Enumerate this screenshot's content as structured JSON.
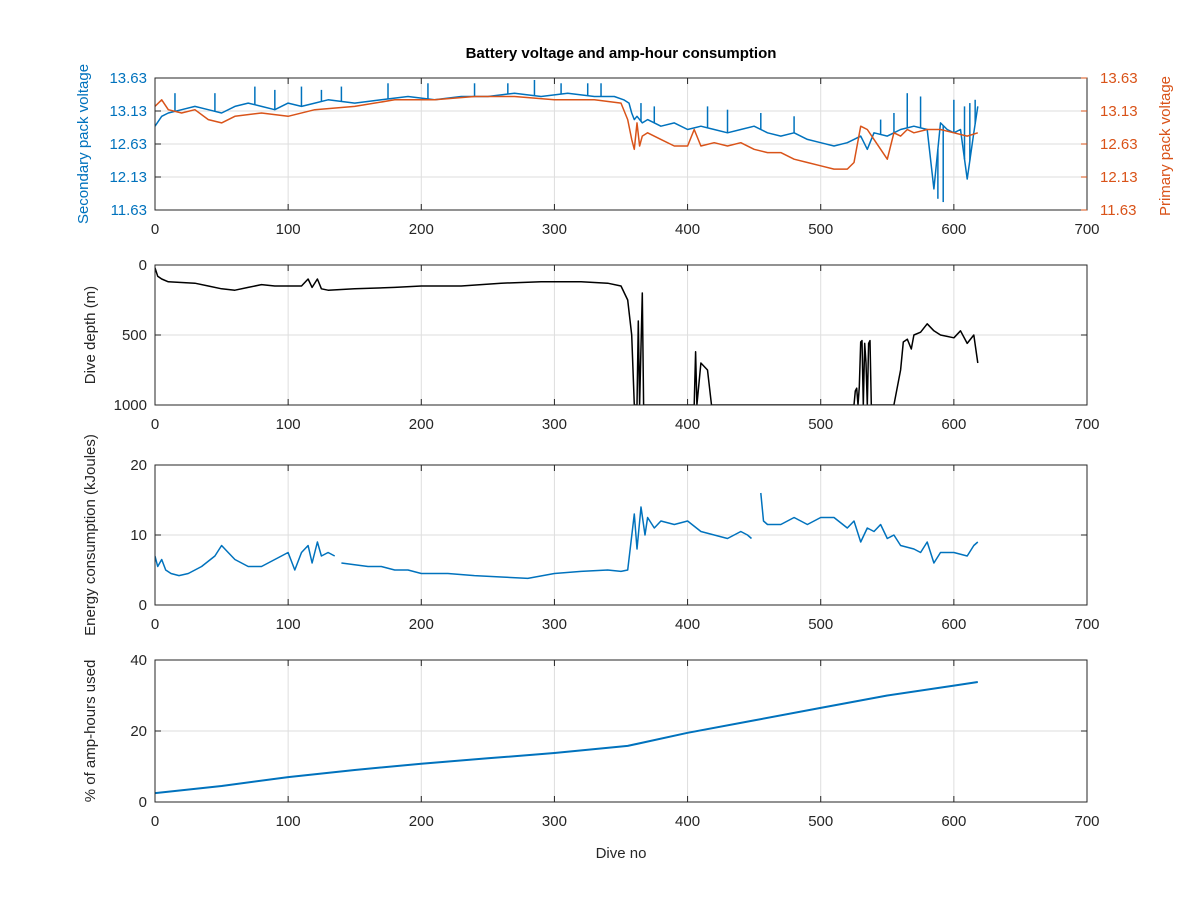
{
  "figure": {
    "title": "Battery voltage and amp-hour consumption",
    "xlabel": "Dive no"
  },
  "colors": {
    "secondary": "#0072bd",
    "primary": "#d95319",
    "depth": "#000000",
    "energy": "#0072bd",
    "amphours": "#0072bd"
  },
  "chart_data": [
    {
      "type": "line",
      "title": "Battery voltage and amp-hour consumption",
      "xlabel": "",
      "ylabel": "Secondary pack voltage",
      "ylabel_right": "Primary pack voltage",
      "xlim": [
        0,
        700
      ],
      "ylim": [
        11.63,
        13.63
      ],
      "xticks": [
        0,
        100,
        200,
        300,
        400,
        500,
        600,
        700
      ],
      "yticks": [
        "11.63",
        "12.13",
        "12.63",
        "13.13",
        "13.63"
      ],
      "yticks_right": [
        "11.63",
        "12.13",
        "12.63",
        "13.13",
        "13.63"
      ],
      "grid": true,
      "series": [
        {
          "axis": "left",
          "x": [
            0,
            5,
            10,
            20,
            30,
            40,
            50,
            60,
            70,
            80,
            90,
            100,
            110,
            120,
            130,
            150,
            170,
            190,
            210,
            230,
            250,
            270,
            290,
            310,
            330,
            345,
            352,
            356,
            358,
            360,
            362,
            366,
            370,
            380,
            390,
            400,
            410,
            420,
            430,
            440,
            450,
            460,
            470,
            480,
            490,
            500,
            510,
            520,
            525,
            530,
            535,
            540,
            550,
            560,
            570,
            580,
            585,
            590,
            595,
            600,
            605,
            610,
            615,
            618
          ],
          "y": [
            12.9,
            13.05,
            13.1,
            13.15,
            13.2,
            13.15,
            13.1,
            13.2,
            13.25,
            13.2,
            13.15,
            13.25,
            13.2,
            13.25,
            13.3,
            13.25,
            13.3,
            13.35,
            13.3,
            13.35,
            13.35,
            13.4,
            13.35,
            13.4,
            13.35,
            13.35,
            13.3,
            13.25,
            13.1,
            13.0,
            13.05,
            12.95,
            13.0,
            12.9,
            12.95,
            12.85,
            12.9,
            12.85,
            12.8,
            12.85,
            12.9,
            12.8,
            12.75,
            12.8,
            12.7,
            12.65,
            12.6,
            12.65,
            12.7,
            12.75,
            12.55,
            12.8,
            12.75,
            12.85,
            12.9,
            12.85,
            11.95,
            12.95,
            12.85,
            12.8,
            12.85,
            12.1,
            12.8,
            13.2
          ],
          "spikes": [
            [
              15,
              13.4
            ],
            [
              45,
              13.4
            ],
            [
              75,
              13.5
            ],
            [
              90,
              13.45
            ],
            [
              110,
              13.5
            ],
            [
              125,
              13.45
            ],
            [
              140,
              13.5
            ],
            [
              175,
              13.55
            ],
            [
              205,
              13.55
            ],
            [
              240,
              13.55
            ],
            [
              265,
              13.55
            ],
            [
              285,
              13.6
            ],
            [
              305,
              13.55
            ],
            [
              325,
              13.55
            ],
            [
              335,
              13.55
            ],
            [
              365,
              13.25
            ],
            [
              375,
              13.2
            ],
            [
              415,
              13.2
            ],
            [
              430,
              13.15
            ],
            [
              455,
              13.1
            ],
            [
              480,
              13.05
            ],
            [
              545,
              13.0
            ],
            [
              555,
              13.1
            ],
            [
              565,
              13.4
            ],
            [
              575,
              13.35
            ],
            [
              588,
              11.8
            ],
            [
              592,
              11.75
            ],
            [
              600,
              13.3
            ],
            [
              608,
              13.2
            ],
            [
              612,
              13.25
            ],
            [
              616,
              13.3
            ]
          ]
        },
        {
          "axis": "right",
          "x": [
            0,
            5,
            10,
            20,
            30,
            40,
            50,
            60,
            80,
            100,
            120,
            150,
            180,
            210,
            240,
            270,
            300,
            330,
            350,
            355,
            358,
            360,
            362,
            364,
            366,
            370,
            380,
            390,
            400,
            405,
            410,
            420,
            430,
            440,
            450,
            460,
            470,
            480,
            490,
            500,
            510,
            520,
            525,
            530,
            535,
            540,
            550,
            555,
            560,
            565,
            570,
            580,
            590,
            600,
            610,
            618
          ],
          "y": [
            13.2,
            13.3,
            13.15,
            13.1,
            13.15,
            13.0,
            12.95,
            13.05,
            13.1,
            13.05,
            13.15,
            13.2,
            13.3,
            13.3,
            13.35,
            13.35,
            13.3,
            13.3,
            13.25,
            13.0,
            12.7,
            12.55,
            12.95,
            12.6,
            12.75,
            12.8,
            12.7,
            12.6,
            12.6,
            12.85,
            12.6,
            12.65,
            12.6,
            12.65,
            12.55,
            12.5,
            12.5,
            12.4,
            12.35,
            12.3,
            12.25,
            12.25,
            12.35,
            12.9,
            12.85,
            12.7,
            12.4,
            12.8,
            12.75,
            12.85,
            12.8,
            12.85,
            12.85,
            12.8,
            12.75,
            12.8
          ]
        }
      ]
    },
    {
      "type": "line",
      "title": "",
      "xlabel": "",
      "ylabel": "Dive depth (m)",
      "xlim": [
        0,
        700
      ],
      "ylim": [
        1000,
        0
      ],
      "reversed_y": true,
      "xticks": [
        0,
        100,
        200,
        300,
        400,
        500,
        600,
        700
      ],
      "yticks": [
        "0",
        "500",
        "1000"
      ],
      "grid": true,
      "series": [
        {
          "axis": "left",
          "x": [
            0,
            2,
            5,
            10,
            30,
            40,
            50,
            60,
            70,
            80,
            90,
            110,
            115,
            118,
            122,
            125,
            130,
            150,
            180,
            200,
            230,
            260,
            290,
            320,
            340,
            350,
            355,
            358,
            360,
            362,
            363,
            364,
            366,
            367,
            368,
            370,
            400,
            405,
            406,
            407,
            410,
            415,
            418,
            420,
            480,
            525,
            526,
            527,
            528,
            529,
            530,
            531,
            532,
            533,
            534,
            535,
            536,
            537,
            538,
            540,
            555,
            560,
            562,
            565,
            568,
            570,
            575,
            580,
            585,
            590,
            600,
            605,
            610,
            615,
            618
          ],
          "y": [
            20,
            80,
            100,
            120,
            130,
            150,
            170,
            180,
            160,
            140,
            150,
            150,
            100,
            160,
            100,
            170,
            180,
            170,
            160,
            150,
            150,
            130,
            120,
            120,
            130,
            150,
            250,
            500,
            1000,
            1000,
            400,
            1000,
            200,
            1000,
            1000,
            1000,
            1000,
            1000,
            620,
            1000,
            700,
            750,
            1000,
            1000,
            1000,
            1000,
            900,
            880,
            1000,
            870,
            550,
            540,
            1000,
            560,
            700,
            1000,
            560,
            540,
            1000,
            1000,
            1000,
            750,
            550,
            530,
            600,
            500,
            480,
            420,
            470,
            500,
            520,
            470,
            560,
            500,
            700
          ]
        }
      ]
    },
    {
      "type": "line",
      "title": "",
      "xlabel": "",
      "ylabel": "Energy consumption (kJoules)",
      "xlim": [
        0,
        700
      ],
      "ylim": [
        0,
        20
      ],
      "xticks": [
        0,
        100,
        200,
        300,
        400,
        500,
        600,
        700
      ],
      "yticks": [
        "0",
        "10",
        "20"
      ],
      "grid": true,
      "series": [
        {
          "axis": "left",
          "x": [
            0,
            2,
            5,
            8,
            12,
            18,
            25,
            35,
            45,
            50,
            55,
            60,
            70,
            80,
            90,
            100,
            105,
            110,
            115,
            118,
            122,
            125,
            130,
            135,
            null,
            140,
            160,
            170,
            180,
            190,
            200,
            220,
            240,
            260,
            280,
            300,
            320,
            340,
            350,
            355,
            360,
            362,
            365,
            368,
            370,
            375,
            380,
            390,
            400,
            410,
            420,
            430,
            440,
            445,
            448,
            null,
            455,
            457,
            460,
            470,
            480,
            490,
            500,
            510,
            520,
            525,
            530,
            535,
            540,
            545,
            550,
            555,
            560,
            570,
            575,
            580,
            585,
            590,
            600,
            610,
            615,
            618
          ],
          "y": [
            7.0,
            5.5,
            6.5,
            5.0,
            4.5,
            4.2,
            4.5,
            5.5,
            7.0,
            8.5,
            7.5,
            6.5,
            5.5,
            5.5,
            6.5,
            7.5,
            5.0,
            7.5,
            8.5,
            6.0,
            9.0,
            7.0,
            7.5,
            7.0,
            null,
            6.0,
            5.5,
            5.5,
            5.0,
            5.0,
            4.5,
            4.5,
            4.2,
            4.0,
            3.8,
            4.5,
            4.8,
            5.0,
            4.8,
            5.0,
            13.0,
            8.0,
            14.0,
            10.0,
            12.5,
            11.0,
            12.0,
            11.5,
            12.0,
            10.5,
            10.0,
            9.5,
            10.5,
            10.0,
            9.5,
            null,
            16.0,
            12.0,
            11.5,
            11.5,
            12.5,
            11.5,
            12.5,
            12.5,
            11.0,
            12.0,
            9.0,
            11.0,
            10.5,
            11.5,
            9.5,
            10.0,
            8.5,
            8.0,
            7.5,
            9.0,
            6.0,
            7.5,
            7.5,
            7.0,
            8.5,
            9.0
          ]
        }
      ]
    },
    {
      "type": "line",
      "title": "",
      "xlabel": "Dive no",
      "ylabel": "% of amp-hours used",
      "xlim": [
        0,
        700
      ],
      "ylim": [
        0,
        40
      ],
      "xticks": [
        0,
        100,
        200,
        300,
        400,
        500,
        600,
        700
      ],
      "yticks": [
        "0",
        "20",
        "40"
      ],
      "grid": true,
      "series": [
        {
          "axis": "left",
          "x": [
            0,
            50,
            100,
            150,
            200,
            250,
            300,
            355,
            400,
            450,
            500,
            550,
            600,
            618
          ],
          "y": [
            2.5,
            4.5,
            7.0,
            9.0,
            10.8,
            12.3,
            13.8,
            15.8,
            19.5,
            23.0,
            26.5,
            30.0,
            32.8,
            33.8
          ]
        }
      ]
    }
  ]
}
